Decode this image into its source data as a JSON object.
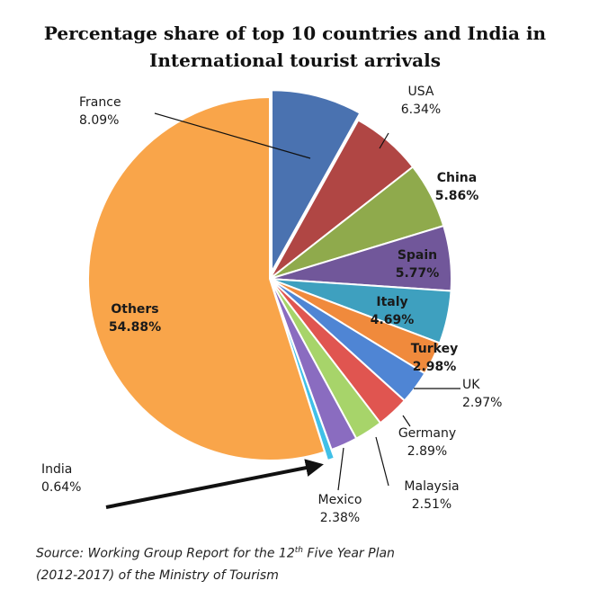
{
  "chart_data": {
    "type": "pie",
    "title_line1": "Percentage share of top 10 countries and India in",
    "title_line2": "International tourist arrivals",
    "slices": [
      {
        "label": "France",
        "value": 8.09,
        "display": "8.09%",
        "color": "#4a72b0"
      },
      {
        "label": "USA",
        "value": 6.34,
        "display": "6.34%",
        "color": "#b04644"
      },
      {
        "label": "China",
        "value": 5.86,
        "display": "5.86%",
        "color": "#8faa4c"
      },
      {
        "label": "Spain",
        "value": 5.77,
        "display": "5.77%",
        "color": "#71579a"
      },
      {
        "label": "Italy",
        "value": 4.69,
        "display": "4.69%",
        "color": "#3ea0bf"
      },
      {
        "label": "Turkey",
        "value": 2.98,
        "display": "2.98%",
        "color": "#f08a3c"
      },
      {
        "label": "UK",
        "value": 2.97,
        "display": "2.97%",
        "color": "#4f85d4"
      },
      {
        "label": "Germany",
        "value": 2.89,
        "display": "2.89%",
        "color": "#e05550"
      },
      {
        "label": "Malaysia",
        "value": 2.51,
        "display": "2.51%",
        "color": "#a7d46a"
      },
      {
        "label": "Mexico",
        "value": 2.38,
        "display": "2.38%",
        "color": "#8a6cc0"
      },
      {
        "label": "India",
        "value": 0.64,
        "display": "0.64%",
        "color": "#40c0e8"
      },
      {
        "label": "Others",
        "value": 54.88,
        "display": "54.88%",
        "color": "#f9a54a"
      }
    ]
  },
  "source": {
    "line1_prefix": "Source: Working Group Report for the 12",
    "line1_sup": "th",
    "line1_suffix": " Five Year Plan",
    "line2": "(2012-2017) of the Ministry of Tourism"
  }
}
